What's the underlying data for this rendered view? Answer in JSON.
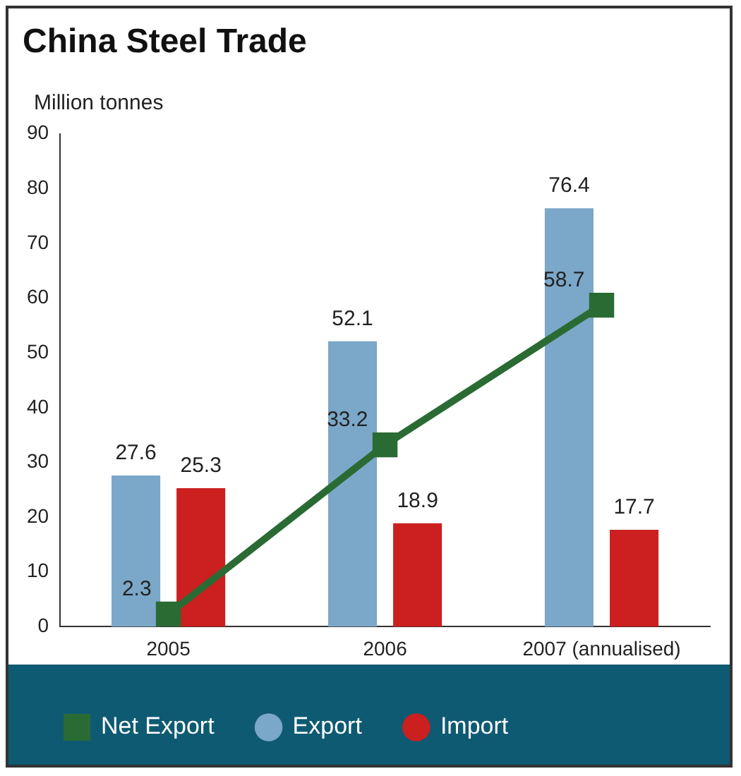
{
  "chart_data": {
    "type": "bar",
    "title": "China Steel Trade",
    "ylabel": "Million tonnes",
    "categories": [
      "2005",
      "2006",
      "2007 (annualised)"
    ],
    "series": [
      {
        "name": "Export",
        "color": "#7ba7c9",
        "values": [
          27.6,
          52.1,
          76.4
        ]
      },
      {
        "name": "Import",
        "color": "#cc1f1f",
        "values": [
          25.3,
          18.9,
          17.7
        ]
      },
      {
        "name": "Net Export",
        "type": "line",
        "color": "#2a6b34",
        "values": [
          2.3,
          33.2,
          58.7
        ]
      }
    ],
    "ylim": [
      0,
      90
    ],
    "yticks": [
      0,
      10,
      20,
      30,
      40,
      50,
      60,
      70,
      80,
      90
    ],
    "grid": false,
    "legend": "bottom",
    "marker": "square",
    "line_style": "solid",
    "data_labels": true
  }
}
